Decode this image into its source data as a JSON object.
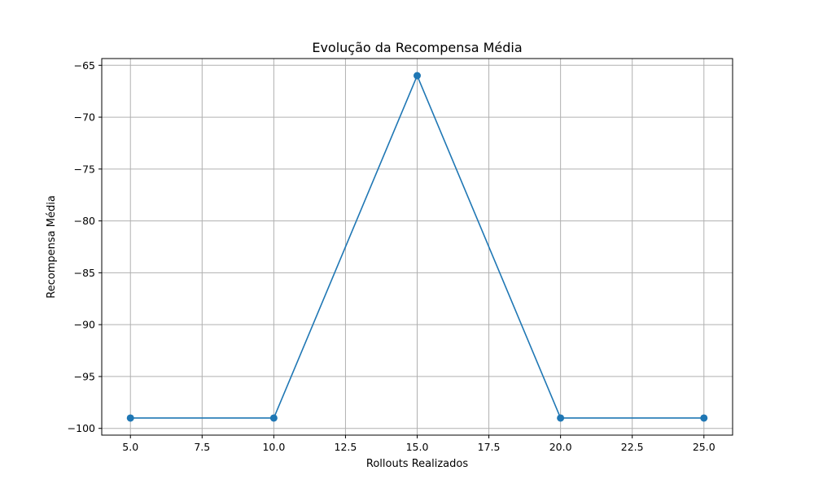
{
  "chart_data": {
    "type": "line",
    "title": "Evolução da Recompensa Média",
    "xlabel": "Rollouts Realizados",
    "ylabel": "Recompensa Média",
    "x": [
      5,
      10,
      15,
      20,
      25
    ],
    "series": [
      {
        "values": [
          -99,
          -99,
          -66,
          -99,
          -99
        ],
        "color": "#1f77b4",
        "marker": "circle"
      }
    ],
    "xlim": [
      4,
      26
    ],
    "ylim": [
      -100.65,
      -64.35
    ],
    "xticks": [
      5.0,
      7.5,
      10.0,
      12.5,
      15.0,
      17.5,
      20.0,
      22.5,
      25.0
    ],
    "xtick_labels": [
      "5.0",
      "7.5",
      "10.0",
      "12.5",
      "15.0",
      "17.5",
      "20.0",
      "22.5",
      "25.0"
    ],
    "yticks": [
      -100,
      -95,
      -90,
      -85,
      -80,
      -75,
      -70,
      -65
    ],
    "ytick_labels": [
      "−100",
      "−95",
      "−90",
      "−85",
      "−80",
      "−75",
      "−70",
      "−65"
    ],
    "grid": true,
    "grid_color": "#b0b0b0",
    "legend": "none"
  }
}
